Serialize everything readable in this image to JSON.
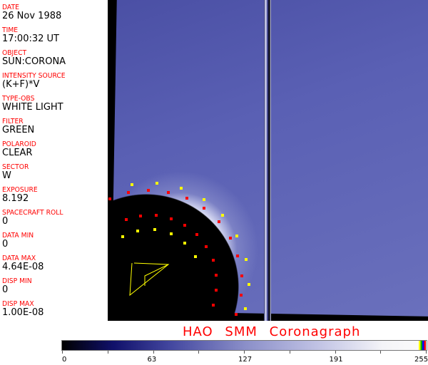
{
  "header_fields": [
    {
      "label": "DATE",
      "value": "26 Nov 1988"
    },
    {
      "label": "TIME",
      "value": "17:00:32 UT"
    },
    {
      "label": "OBJECT",
      "value": "SUN:CORONA"
    },
    {
      "label": "INTENSITY SOURCE",
      "value": "(K+F)*V"
    },
    {
      "label": "TYPE-OBS",
      "value": "WHITE LIGHT"
    },
    {
      "label": "FILTER",
      "value": "GREEN"
    },
    {
      "label": "POLAROID",
      "value": "CLEAR"
    },
    {
      "label": "SECTOR",
      "value": "W"
    },
    {
      "label": "EXPOSURE",
      "value": "8.192"
    },
    {
      "label": "SPACECRAFT ROLL",
      "value": "0"
    },
    {
      "label": "DATA MIN",
      "value": "0"
    },
    {
      "label": "DATA MAX",
      "value": "4.64E-08"
    },
    {
      "label": "DISP MIN",
      "value": "0"
    },
    {
      "label": "DISP MAX",
      "value": "1.00E-08"
    }
  ],
  "title": "HAO SMM Coronagraph",
  "colorbar": {
    "ticks": [
      "0",
      "63",
      "127",
      "191",
      "255"
    ],
    "colors": {
      "low": "#000000",
      "mid": "#8a8ec8",
      "high": "#fafafa"
    },
    "markers": [
      "#ffff00",
      "#00aa00",
      "#0000ff",
      "#ff0000"
    ]
  },
  "overlay_colors": {
    "points_red": "#ff0000",
    "points_yellow": "#ffff00"
  }
}
